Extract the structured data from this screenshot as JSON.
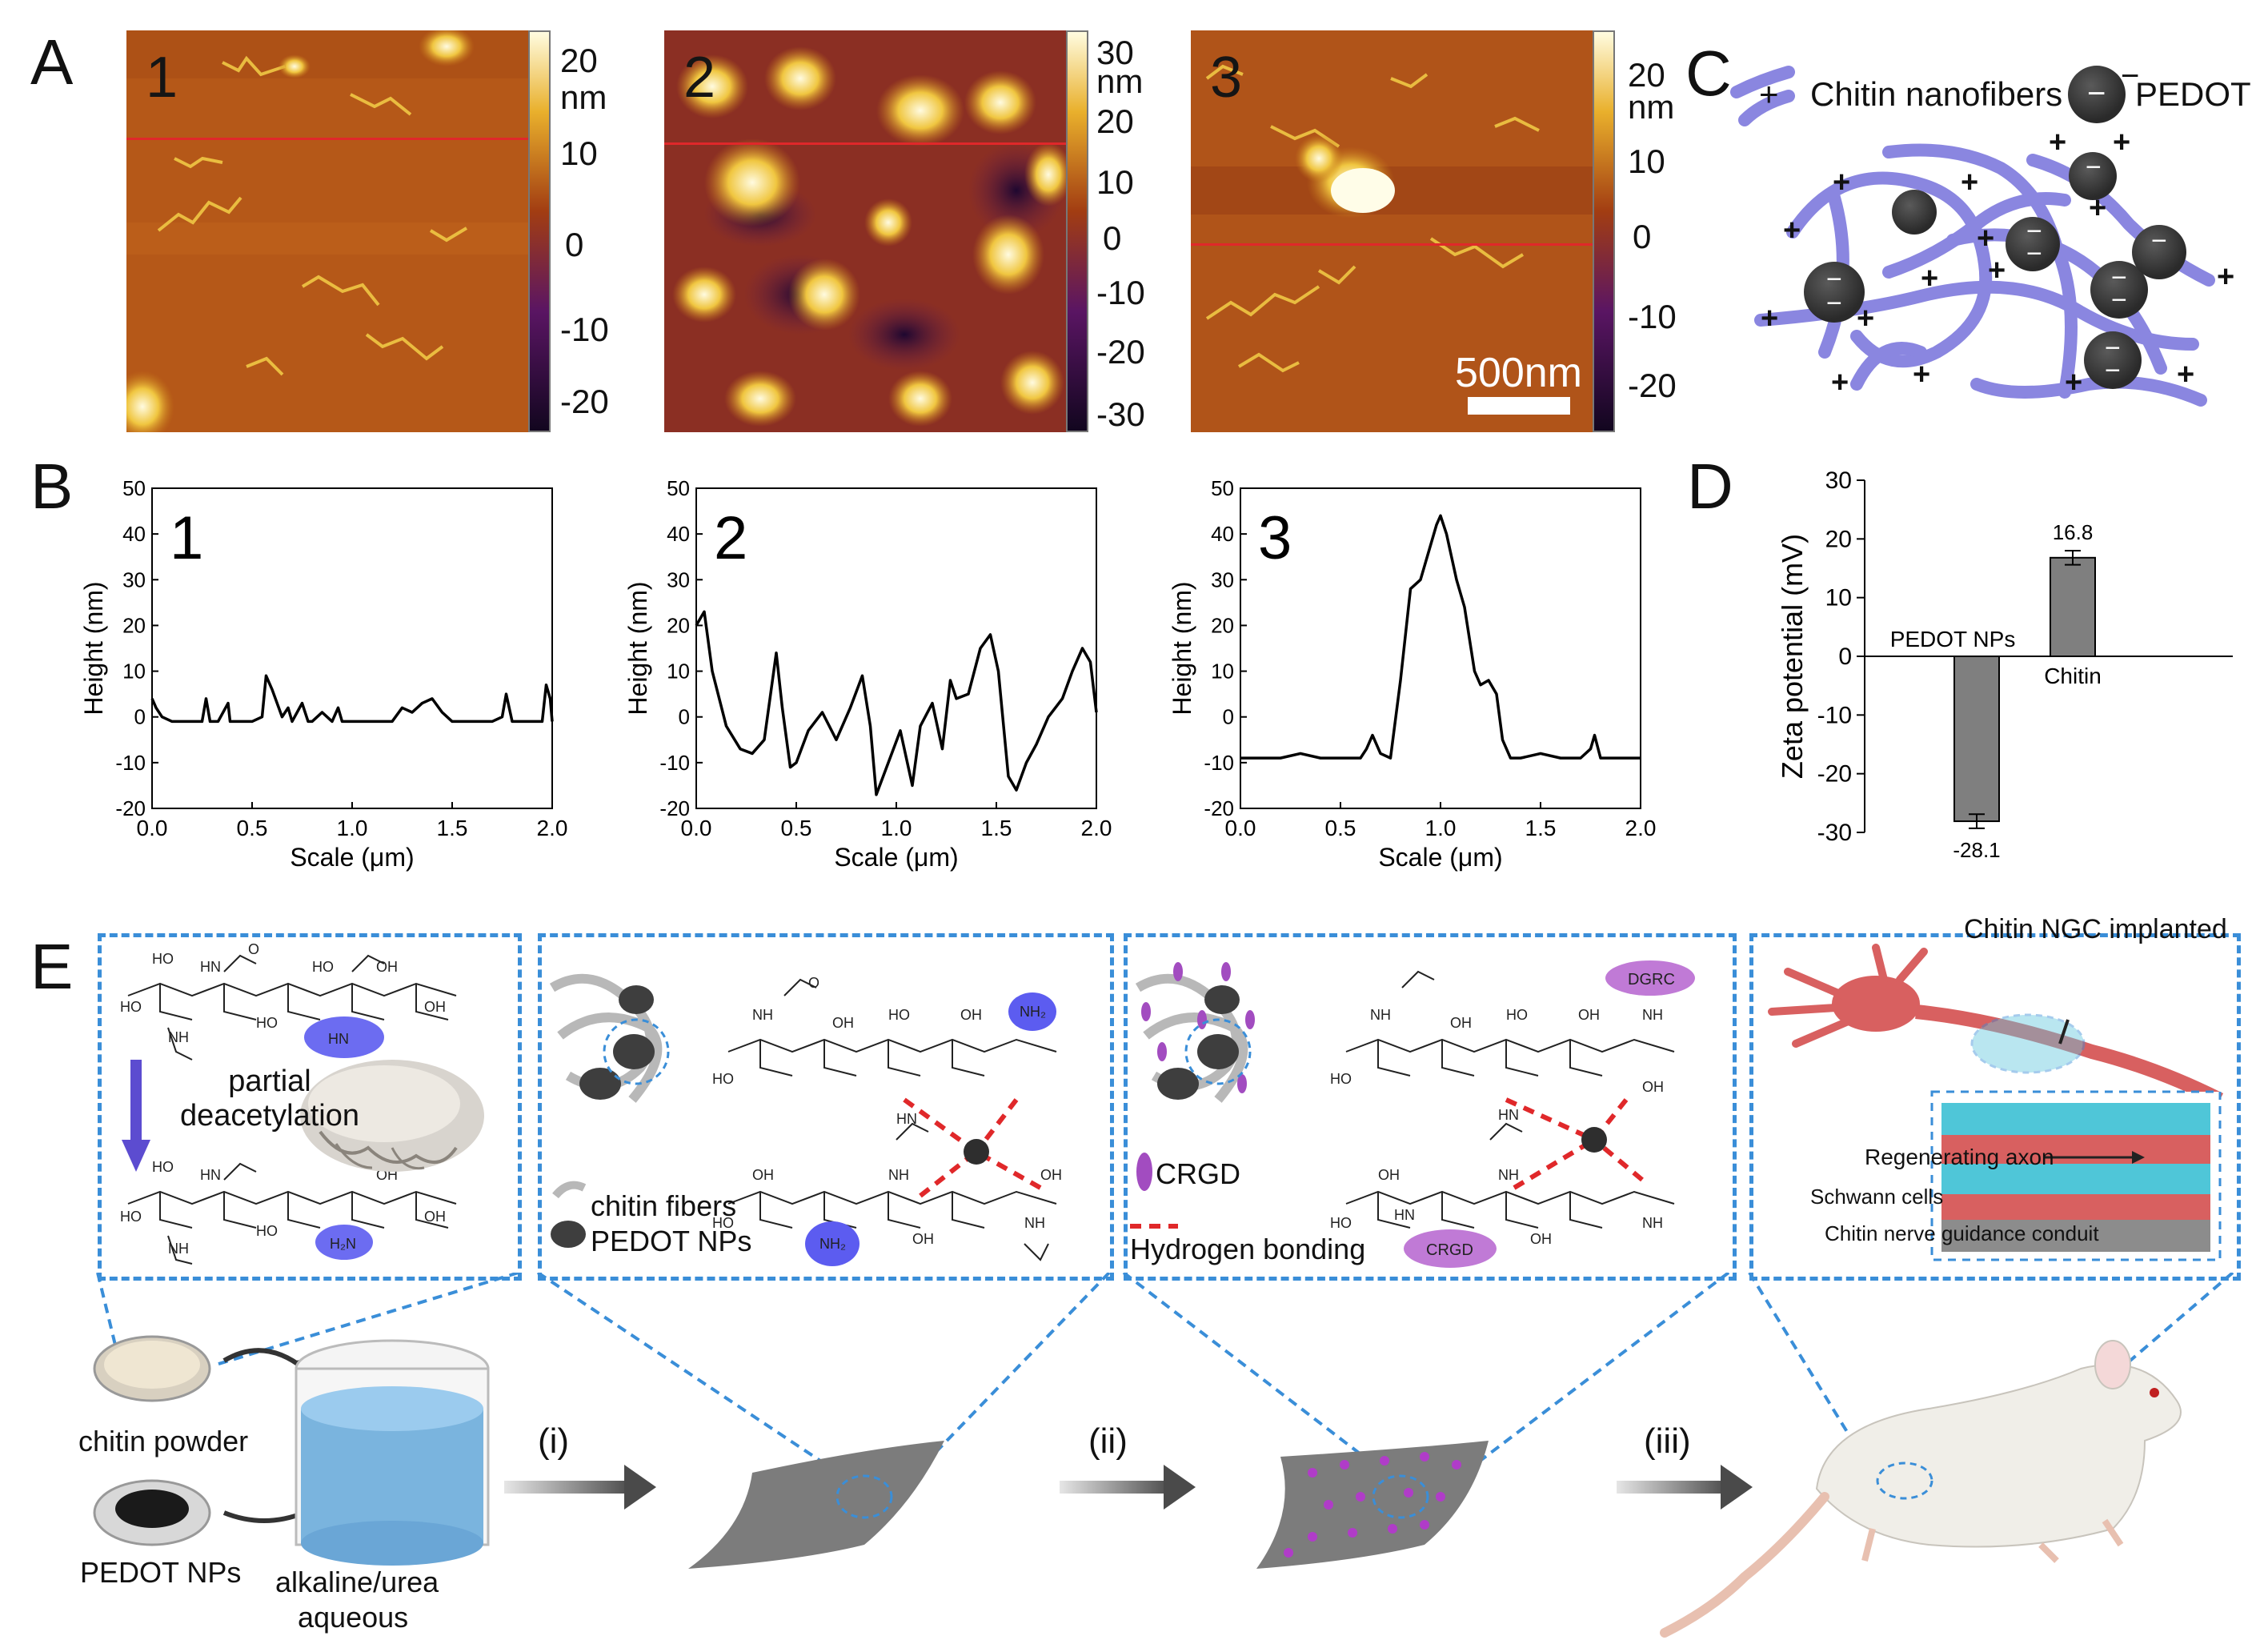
{
  "panels": {
    "A": "A",
    "B": "B",
    "C": "C",
    "D": "D",
    "E": "E"
  },
  "afm": [
    {
      "num": "1",
      "ticks": [
        "20",
        "10",
        "0",
        "-10",
        "-20"
      ],
      "unit": "nm"
    },
    {
      "num": "2",
      "ticks": [
        "30",
        "20",
        "10",
        "0",
        "-10",
        "-20",
        "-30"
      ],
      "unit": "nm"
    },
    {
      "num": "3",
      "ticks": [
        "20",
        "10",
        "0",
        "-10",
        "-20"
      ],
      "unit": "nm",
      "scalebar": "500nm"
    }
  ],
  "colors": {
    "afm_low": "#12061f",
    "afm_mid": "#a23d12",
    "afm_high": "#fffce0",
    "fiber": "#8a86e0",
    "pedot": "#3e3e3e",
    "dash": "#3a8ed8",
    "bar_fill": "#7f7f7f",
    "profile_line": "#000000"
  },
  "chart_data": [
    {
      "type": "line",
      "id": "B1",
      "title": "1",
      "xlabel": "Scale (μm)",
      "ylabel": "Height (nm)",
      "xlim": [
        0,
        2
      ],
      "ylim": [
        -20,
        50
      ],
      "xticks": [
        "0.0",
        "0.5",
        "1.0",
        "1.5",
        "2.0"
      ],
      "yticks": [
        "-20",
        "-10",
        "0",
        "10",
        "20",
        "30",
        "40",
        "50"
      ],
      "x": [
        0.0,
        0.02,
        0.05,
        0.1,
        0.2,
        0.25,
        0.27,
        0.29,
        0.33,
        0.38,
        0.39,
        0.41,
        0.5,
        0.55,
        0.57,
        0.6,
        0.65,
        0.68,
        0.7,
        0.75,
        0.78,
        0.8,
        0.85,
        0.9,
        0.93,
        0.95,
        1.0,
        1.1,
        1.2,
        1.25,
        1.3,
        1.35,
        1.4,
        1.45,
        1.5,
        1.6,
        1.7,
        1.75,
        1.77,
        1.8,
        1.85,
        1.9,
        1.95,
        1.97,
        1.99,
        2.0
      ],
      "y": [
        4,
        2,
        0,
        -1,
        -1,
        -1,
        4,
        -1,
        -1,
        3,
        -1,
        -1,
        -1,
        0,
        9,
        6,
        0,
        2,
        -1,
        3,
        -1,
        -1,
        1,
        -1,
        2,
        -1,
        -1,
        -1,
        -1,
        2,
        1,
        3,
        4,
        1,
        -1,
        -1,
        -1,
        0,
        5,
        -1,
        -1,
        -1,
        -1,
        7,
        4,
        -1
      ]
    },
    {
      "type": "line",
      "id": "B2",
      "title": "2",
      "xlabel": "Scale (μm)",
      "ylabel": "Height (nm)",
      "xlim": [
        0,
        2
      ],
      "ylim": [
        -20,
        50
      ],
      "xticks": [
        "0.0",
        "0.5",
        "1.0",
        "1.5",
        "2.0"
      ],
      "yticks": [
        "-20",
        "-10",
        "0",
        "10",
        "20",
        "30",
        "40",
        "50"
      ],
      "x": [
        0.0,
        0.04,
        0.08,
        0.15,
        0.22,
        0.28,
        0.34,
        0.4,
        0.43,
        0.47,
        0.5,
        0.56,
        0.63,
        0.7,
        0.77,
        0.83,
        0.87,
        0.9,
        0.96,
        1.02,
        1.08,
        1.12,
        1.18,
        1.23,
        1.27,
        1.3,
        1.36,
        1.42,
        1.47,
        1.51,
        1.56,
        1.6,
        1.65,
        1.7,
        1.76,
        1.83,
        1.88,
        1.93,
        1.97,
        2.0
      ],
      "y": [
        20,
        23,
        10,
        -2,
        -7,
        -8,
        -5,
        14,
        2,
        -11,
        -10,
        -3,
        1,
        -5,
        2,
        9,
        -2,
        -17,
        -10,
        -3,
        -15,
        -2,
        3,
        -7,
        8,
        4,
        5,
        15,
        18,
        10,
        -13,
        -16,
        -10,
        -6,
        0,
        4,
        10,
        15,
        12,
        1
      ]
    },
    {
      "type": "line",
      "id": "B3",
      "title": "3",
      "xlabel": "Scale (μm)",
      "ylabel": "Height (nm)",
      "xlim": [
        0,
        2
      ],
      "ylim": [
        -20,
        50
      ],
      "xticks": [
        "0.0",
        "0.5",
        "1.0",
        "1.5",
        "2.0"
      ],
      "yticks": [
        "-20",
        "-10",
        "0",
        "10",
        "20",
        "30",
        "40",
        "50"
      ],
      "x": [
        0.0,
        0.1,
        0.2,
        0.3,
        0.4,
        0.5,
        0.6,
        0.63,
        0.66,
        0.7,
        0.75,
        0.8,
        0.85,
        0.9,
        0.94,
        0.98,
        1.0,
        1.03,
        1.08,
        1.12,
        1.17,
        1.2,
        1.24,
        1.28,
        1.31,
        1.35,
        1.4,
        1.5,
        1.6,
        1.7,
        1.75,
        1.77,
        1.8,
        1.9,
        2.0
      ],
      "y": [
        -9,
        -9,
        -9,
        -8,
        -9,
        -9,
        -9,
        -7,
        -4,
        -8,
        -9,
        8,
        28,
        30,
        36,
        42,
        44,
        40,
        30,
        24,
        10,
        7,
        8,
        5,
        -5,
        -9,
        -9,
        -8,
        -9,
        -9,
        -7,
        -4,
        -9,
        -9,
        -9
      ]
    },
    {
      "type": "bar",
      "id": "D",
      "categories": [
        "PEDOT NPs",
        "Chitin"
      ],
      "values": [
        -28.1,
        16.8
      ],
      "errors": [
        1.2,
        1.2
      ],
      "value_labels": [
        "-28.1",
        "16.8"
      ],
      "ylabel": "Zeta potential (mV)",
      "ylim": [
        -30,
        30
      ],
      "yticks": [
        "-30",
        "-20",
        "-10",
        "0",
        "10",
        "20",
        "30"
      ]
    }
  ],
  "panelC": {
    "legend_fiber": "Chitin nanofibers",
    "legend_pedot": "PEDOT",
    "plus": "+",
    "minus": "−"
  },
  "panelE": {
    "box1": {
      "process": "partial deacetylation"
    },
    "box2": {
      "legend_fibers": "chitin fibers",
      "legend_nps": "PEDOT NPs"
    },
    "box3": {
      "legend_crgd": "CRGD",
      "legend_hbond": "Hydrogen bonding"
    },
    "box4": {
      "implanted": "Chitin NGC implanted",
      "axon": "Regenerating axon",
      "schwann": "Schwann cells",
      "conduit": "Chitin nerve guidance conduit"
    },
    "bottom": {
      "chitin_powder": "chitin powder",
      "pedot_nps": "PEDOT NPs",
      "solvent_line1": "alkaline/urea",
      "solvent_line2": "aqueous",
      "step1": "(i)",
      "step2": "(ii)",
      "step3": "(iii)"
    },
    "chem": {
      "HO": "HO",
      "OH": "OH",
      "HN": "HN",
      "NH": "NH",
      "NH2": "NH₂",
      "H2N": "H₂N",
      "O": "O",
      "DGRC": "DGRC",
      "CRGD": "CRGD"
    }
  }
}
